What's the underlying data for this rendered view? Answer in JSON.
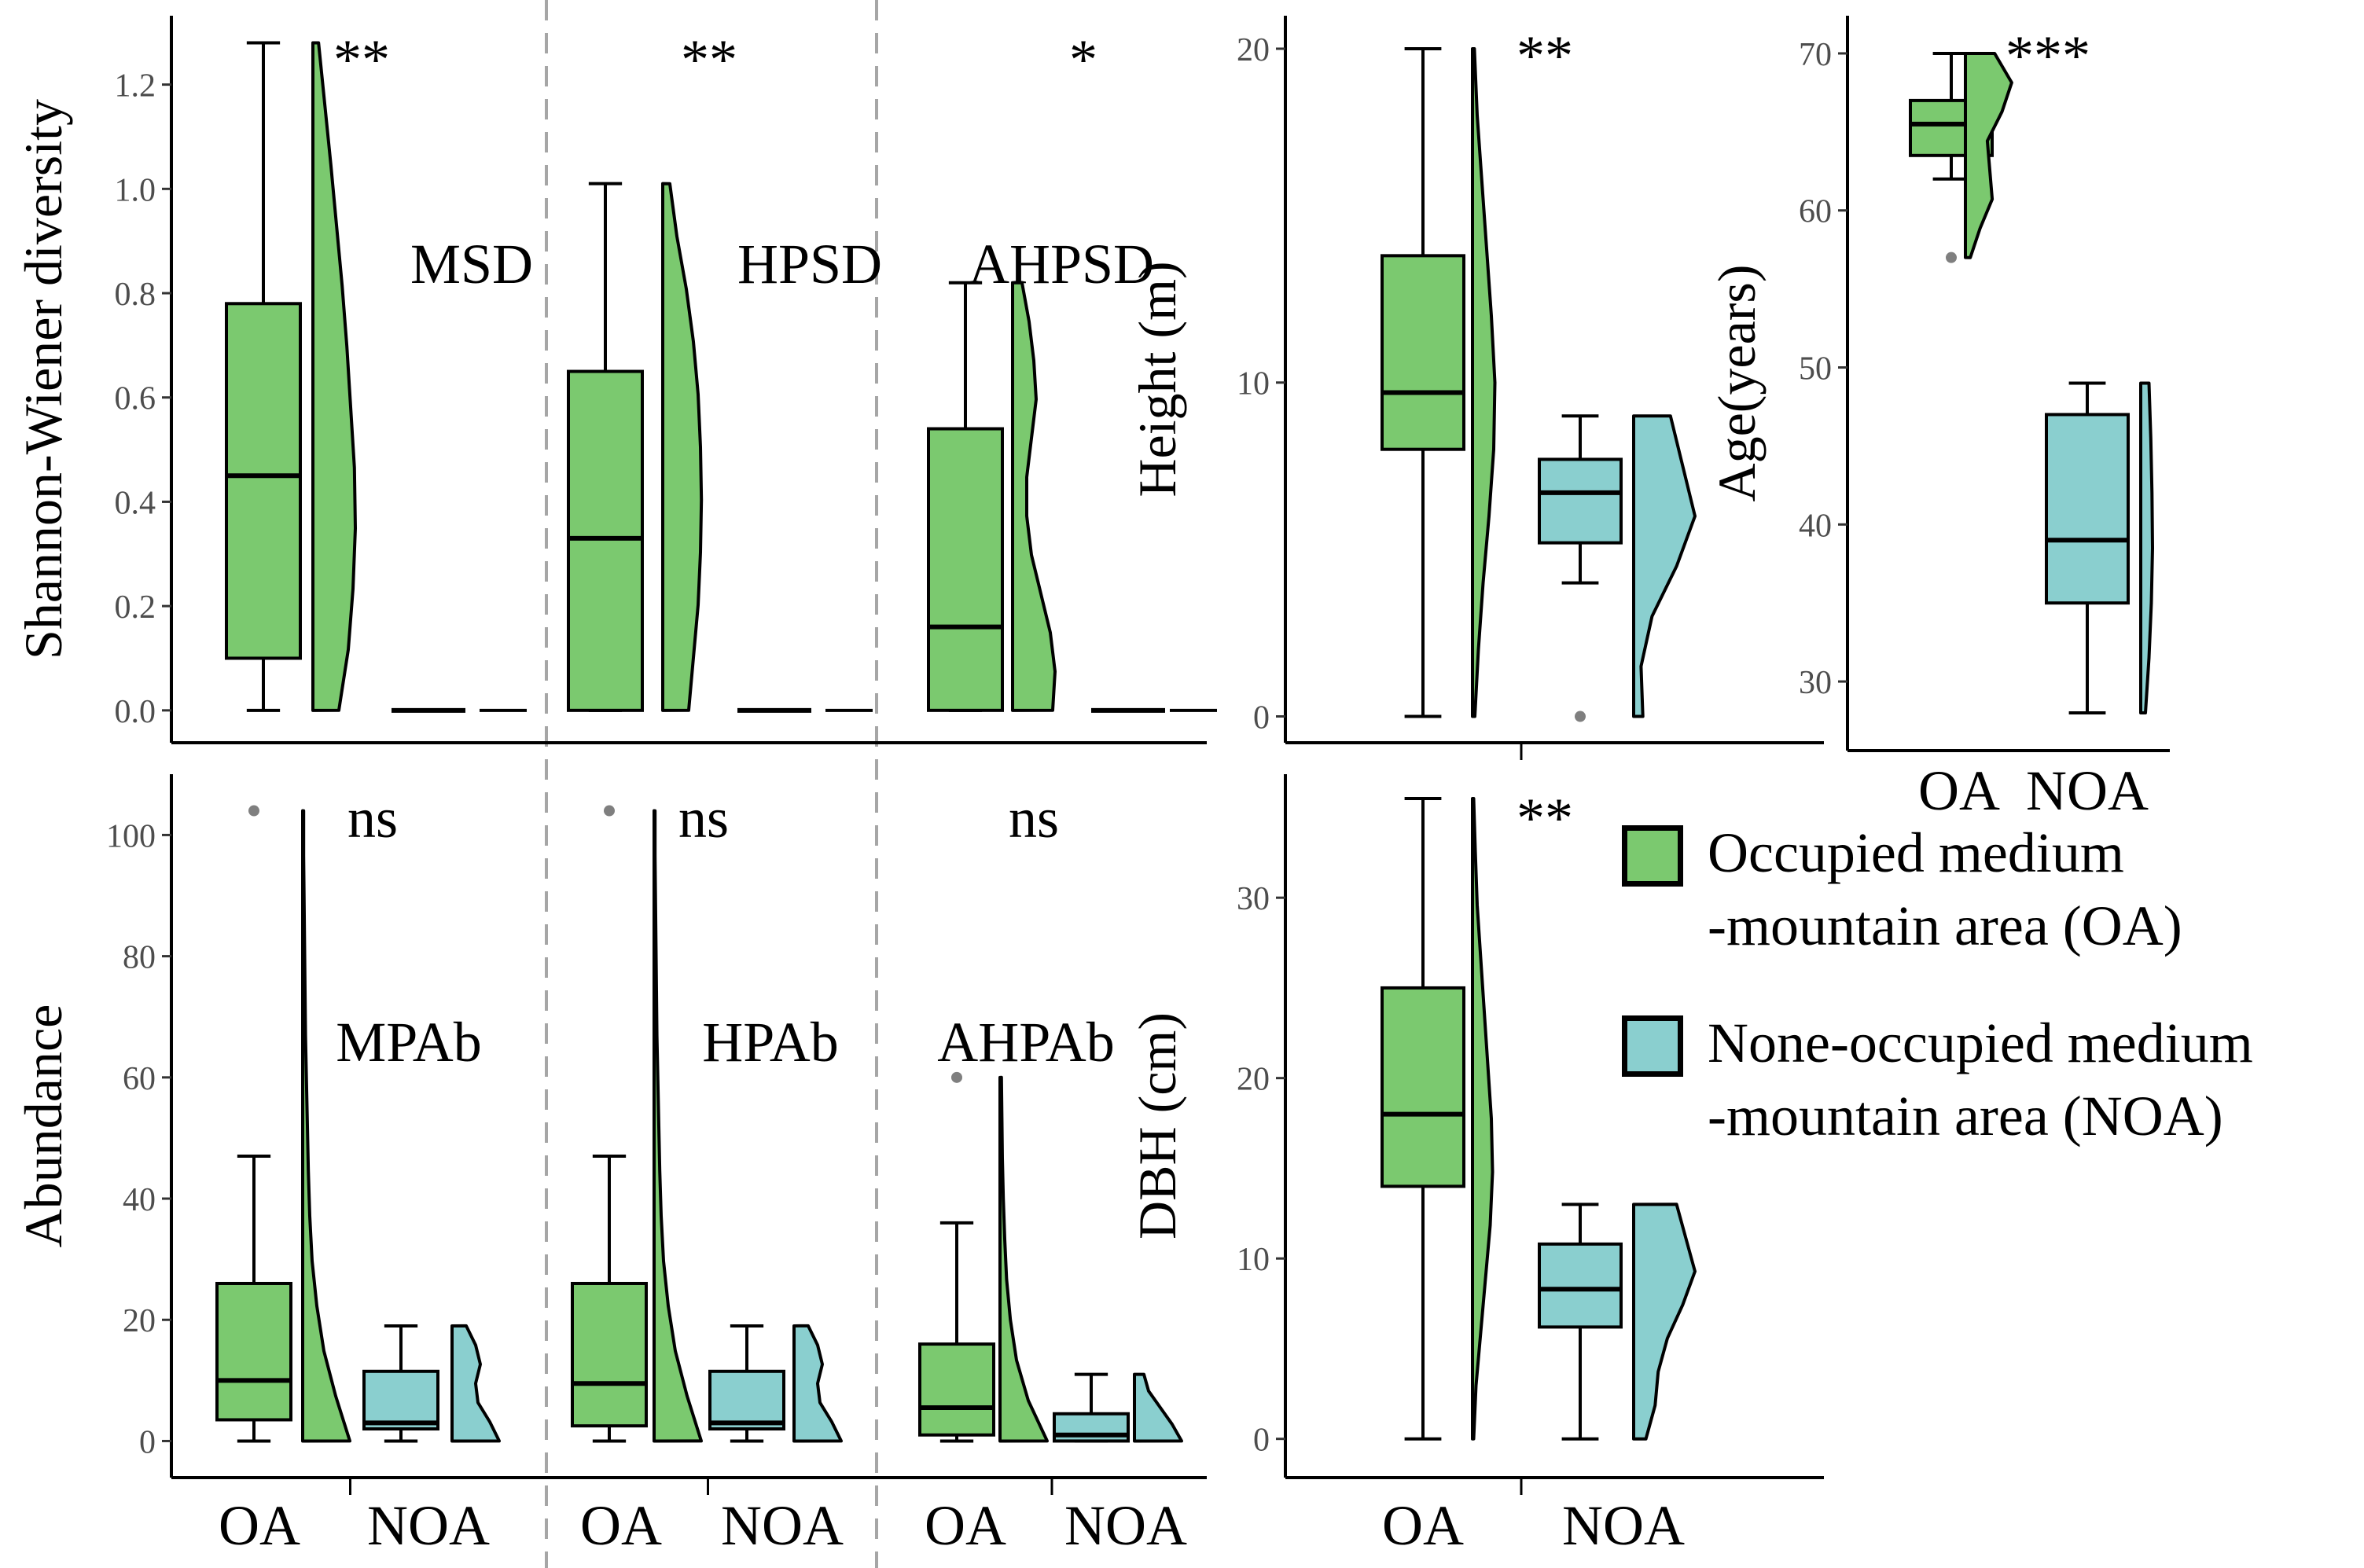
{
  "colors": {
    "OA": "#7bc96f",
    "NOA": "#8acfcf",
    "outline": "#000000",
    "outlier": "#7f7f7f",
    "divider": "#a6a6a6"
  },
  "legend": {
    "items": [
      {
        "group": "OA",
        "line1": "Occupied medium",
        "line2": "-mountain area (OA)"
      },
      {
        "group": "NOA",
        "line1": "None-occupied medium",
        "line2": "-mountain area (NOA)"
      }
    ]
  },
  "chart_data": [
    {
      "id": "diversity",
      "type": "box+violin",
      "ylabel": "Shannon-Wiener  diversity",
      "ylim": [
        -0.05,
        1.32
      ],
      "yticks": [
        0.0,
        0.2,
        0.4,
        0.6,
        0.8,
        1.0,
        1.2
      ],
      "ytick_labels": [
        "0.0",
        "0.2",
        "0.4",
        "0.6",
        "0.8",
        "1.0",
        "1.2"
      ],
      "panels": [
        {
          "label": "MSD",
          "significance": "**",
          "OA": {
            "min": 0,
            "q1": 0.1,
            "median": 0.45,
            "q3": 0.78,
            "max": 1.28,
            "outliers": [],
            "density": [
              0.55,
              0.75,
              0.85,
              0.9,
              0.88,
              0.8,
              0.72,
              0.62,
              0.5,
              0.38,
              0.25,
              0.12
            ]
          },
          "NOA": {
            "min": 0,
            "q1": 0,
            "median": 0,
            "q3": 0,
            "max": 0,
            "outliers": [],
            "density": []
          }
        },
        {
          "label": "HPSD",
          "significance": "**",
          "OA": {
            "min": 0,
            "q1": 0,
            "median": 0.33,
            "q3": 0.65,
            "max": 1.01,
            "outliers": [],
            "density": [
              0.55,
              0.65,
              0.75,
              0.8,
              0.82,
              0.8,
              0.75,
              0.65,
              0.5,
              0.3,
              0.15
            ]
          },
          "NOA": {
            "min": 0,
            "q1": 0,
            "median": 0,
            "q3": 0,
            "max": 0,
            "outliers": [],
            "density": []
          }
        },
        {
          "label": "AHPSD",
          "significance": "*",
          "OA": {
            "min": 0,
            "q1": 0,
            "median": 0.16,
            "q3": 0.54,
            "max": 0.82,
            "outliers": [],
            "density": [
              0.85,
              0.9,
              0.8,
              0.6,
              0.4,
              0.3,
              0.3,
              0.4,
              0.5,
              0.45,
              0.35,
              0.2
            ]
          },
          "NOA": {
            "min": 0,
            "q1": 0,
            "median": 0,
            "q3": 0,
            "max": 0,
            "outliers": [],
            "density": []
          }
        }
      ],
      "categories": [
        "OA",
        "NOA"
      ]
    },
    {
      "id": "abundance",
      "type": "box+violin",
      "ylabel": "Abundance",
      "ylim": [
        -5,
        109
      ],
      "yticks": [
        0,
        20,
        40,
        60,
        80,
        100
      ],
      "ytick_labels": [
        "0",
        "20",
        "40",
        "60",
        "80",
        "100"
      ],
      "categories": [
        "OA",
        "NOA"
      ],
      "panels": [
        {
          "label": "MPAb",
          "significance": "ns",
          "OA": {
            "min": 0,
            "q1": 3.5,
            "median": 10,
            "q3": 26,
            "max": 47,
            "outliers": [
              104
            ],
            "density": [
              1,
              0.7,
              0.45,
              0.3,
              0.2,
              0.15,
              0.12,
              0.1,
              0.08,
              0.06,
              0.05,
              0.04,
              0.03,
              0.02,
              0.02
            ]
          },
          "NOA": {
            "min": 0,
            "q1": 2,
            "median": 3,
            "q3": 11.5,
            "max": 19,
            "outliers": [],
            "density": [
              1,
              0.8,
              0.55,
              0.5,
              0.6,
              0.5,
              0.3
            ]
          }
        },
        {
          "label": "HPAb",
          "significance": "ns",
          "OA": {
            "min": 0,
            "q1": 2.5,
            "median": 9.5,
            "q3": 26,
            "max": 47,
            "outliers": [
              104
            ],
            "density": [
              1,
              0.7,
              0.45,
              0.3,
              0.2,
              0.15,
              0.12,
              0.1,
              0.08,
              0.06,
              0.05,
              0.04,
              0.03,
              0.02,
              0.02
            ]
          },
          "NOA": {
            "min": 0,
            "q1": 2,
            "median": 3,
            "q3": 11.5,
            "max": 19,
            "outliers": [],
            "density": [
              1,
              0.8,
              0.55,
              0.5,
              0.6,
              0.5,
              0.3
            ]
          }
        },
        {
          "label": "AHPAb",
          "significance": "ns",
          "OA": {
            "min": 0,
            "q1": 1,
            "median": 5.5,
            "q3": 16,
            "max": 36,
            "outliers": [
              60
            ],
            "density": [
              1,
              0.6,
              0.35,
              0.22,
              0.14,
              0.1,
              0.07,
              0.05,
              0.04,
              0.03
            ]
          },
          "NOA": {
            "min": 0,
            "q1": 0,
            "median": 1,
            "q3": 4.5,
            "max": 11,
            "outliers": [],
            "density": [
              1,
              0.8,
              0.55,
              0.3,
              0.2
            ]
          }
        }
      ]
    },
    {
      "id": "height",
      "type": "box+violin",
      "ylabel": "Height (m)",
      "significance": "**",
      "ylim": [
        -0.6,
        20.8
      ],
      "yticks": [
        0,
        10,
        20
      ],
      "ytick_labels": [
        "0",
        "10",
        "20"
      ],
      "categories": [
        "OA",
        "NOA"
      ],
      "OA": {
        "min": 0,
        "q1": 8,
        "median": 9.7,
        "q3": 13.8,
        "max": 20,
        "outliers": [],
        "density": [
          0.1,
          0.25,
          0.45,
          0.7,
          0.9,
          0.95,
          0.8,
          0.6,
          0.4,
          0.2,
          0.08
        ]
      },
      "NOA": {
        "min": 4,
        "q1": 5.2,
        "median": 6.7,
        "q3": 7.7,
        "max": 9,
        "outliers": [
          0
        ],
        "density": [
          0.15,
          0.12,
          0.3,
          0.7,
          1.0,
          0.8,
          0.6
        ]
      }
    },
    {
      "id": "age",
      "type": "box+violin",
      "ylabel": "Age(years)",
      "significance": "***",
      "ylim": [
        26,
        72
      ],
      "yticks": [
        30,
        40,
        50,
        60,
        70
      ],
      "ytick_labels": [
        "30",
        "40",
        "50",
        "60",
        "70"
      ],
      "categories": [
        "OA",
        "NOA"
      ],
      "OA": {
        "min": 62,
        "q1": 63.5,
        "median": 65.5,
        "q3": 67,
        "max": 70,
        "outliers": [
          57
        ],
        "density": [
          0.1,
          0.3,
          0.55,
          0.5,
          0.45,
          0.75,
          0.95,
          0.6
        ]
      },
      "NOA": {
        "min": 28,
        "q1": 35,
        "median": 39,
        "q3": 47,
        "max": 49,
        "outliers": [],
        "density": [
          0.4,
          0.7,
          0.9,
          1.0,
          0.95,
          0.85,
          0.7
        ]
      }
    },
    {
      "id": "dbh",
      "type": "box+violin",
      "ylabel": "DBH (cm)",
      "significance": "**",
      "ylim": [
        -1.8,
        36.5
      ],
      "yticks": [
        0,
        10,
        20,
        30
      ],
      "ytick_labels": [
        "0",
        "10",
        "20",
        "30"
      ],
      "categories": [
        "OA",
        "NOA"
      ],
      "OA": {
        "min": 0,
        "q1": 14,
        "median": 18,
        "q3": 25,
        "max": 35.5,
        "outliers": [],
        "density": [
          0.05,
          0.15,
          0.35,
          0.55,
          0.75,
          0.85,
          0.8,
          0.65,
          0.5,
          0.35,
          0.2,
          0.12,
          0.05
        ]
      },
      "NOA": {
        "min": 0,
        "q1": 6.2,
        "median": 8.3,
        "q3": 10.8,
        "max": 13,
        "outliers": [],
        "density": [
          0.2,
          0.35,
          0.4,
          0.55,
          0.8,
          1.0,
          0.85,
          0.7
        ]
      }
    }
  ]
}
